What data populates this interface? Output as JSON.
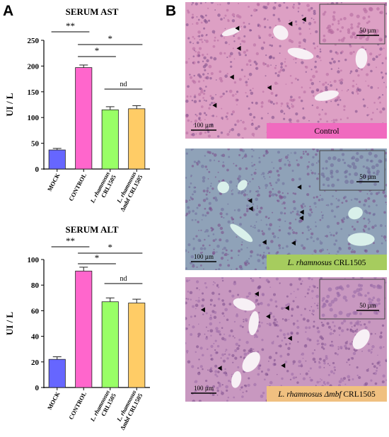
{
  "panels": {
    "a_label": "A",
    "b_label": "B"
  },
  "chart_data": [
    {
      "type": "bar",
      "title": "SERUM AST",
      "ylabel": "UI / L",
      "ylim": [
        0,
        250
      ],
      "yticks": [
        0,
        50,
        100,
        150,
        200,
        250
      ],
      "categories": [
        "MOCK",
        "CONTROL",
        "L. rhamnosus CRL1505",
        "L. rhamnosus Δmbf CRL1505"
      ],
      "category_lines": [
        [
          "MOCK"
        ],
        [
          "CONTROL"
        ],
        [
          "L. rhamnosus",
          "CRL1505"
        ],
        [
          "L. rhamnosus",
          "Δmbf CRL1505"
        ]
      ],
      "values": [
        37,
        197,
        115,
        117
      ],
      "errors": [
        3,
        5,
        6,
        6
      ],
      "colors": [
        "#6666ff",
        "#ff66cc",
        "#99ff66",
        "#ffcc66"
      ],
      "significance": [
        {
          "from": 0,
          "to": 1,
          "label": "**"
        },
        {
          "from": 1,
          "to": 3,
          "label": "*"
        },
        {
          "from": 1,
          "to": 2,
          "label": "*"
        },
        {
          "from": 2,
          "to": 3,
          "label": "nd"
        }
      ]
    },
    {
      "type": "bar",
      "title": "SERUM ALT",
      "ylabel": "UI / L",
      "ylim": [
        0,
        100
      ],
      "yticks": [
        0,
        20,
        40,
        60,
        80,
        100
      ],
      "categories": [
        "MOCK",
        "CONTROL",
        "L. rhamnosus CRL1505",
        "L. rhamnosus Δmbf CRL1505"
      ],
      "category_lines": [
        [
          "MOCK"
        ],
        [
          "CONTROL"
        ],
        [
          "L. rhamnosus",
          "CRL1505"
        ],
        [
          "L. rhamnosus",
          "Δmbf CRL1505"
        ]
      ],
      "values": [
        22,
        91,
        67,
        66
      ],
      "errors": [
        2,
        3,
        3,
        3
      ],
      "colors": [
        "#6666ff",
        "#ff66cc",
        "#99ff66",
        "#ffcc66"
      ],
      "significance": [
        {
          "from": 0,
          "to": 1,
          "label": "**"
        },
        {
          "from": 1,
          "to": 3,
          "label": "*"
        },
        {
          "from": 1,
          "to": 2,
          "label": "*"
        },
        {
          "from": 2,
          "to": 3,
          "label": "nd"
        }
      ]
    }
  ],
  "micrographs": [
    {
      "label_species": "",
      "label_strain": "Control",
      "scale_main": "100 µm",
      "scale_inset": "50 µm",
      "label_bg": "#f06bbf",
      "tissue": "#dda0c4",
      "tissue_dark": "#b56aa0"
    },
    {
      "label_species": "L. rhamnosus",
      "label_strain": " CRL1505",
      "scale_main": "100 µm",
      "scale_inset": "50 µm",
      "label_bg": "#a6cc5e",
      "tissue": "#8fa2b8",
      "tissue_dark": "#6f6b9a"
    },
    {
      "label_species": "L. rhamnosus Δmbf",
      "label_strain": " CRL1505",
      "scale_main": "100 µm",
      "scale_inset": "50 µm",
      "label_bg": "#f0c080",
      "tissue": "#c898c0",
      "tissue_dark": "#9a6aa6"
    }
  ]
}
